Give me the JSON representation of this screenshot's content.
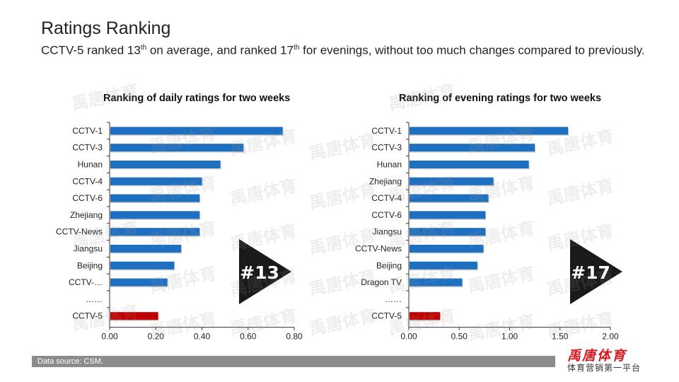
{
  "page": {
    "title": "Ratings Ranking",
    "subtitle_pre": "CCTV-5 ranked 13",
    "subtitle_sup1": "th",
    "subtitle_mid": " on average, and ranked 17",
    "subtitle_sup2": "th",
    "subtitle_post": " for evenings, without too much changes compared to previously."
  },
  "footer": {
    "source": "Data source: CSM."
  },
  "logo": {
    "name": "禹唐体育",
    "tagline": "体育营销第一平台"
  },
  "watermark": "禹唐体育",
  "colors": {
    "bar": "#1f6fc0",
    "highlight": "#c00000",
    "badge": "#1a1a1a",
    "footer": "#8c8c8c"
  },
  "chart_data": [
    {
      "type": "bar",
      "orientation": "horizontal",
      "title": "Ranking of daily ratings for two weeks",
      "categories": [
        "CCTV-1",
        "CCTV-3",
        "Hunan",
        "CCTV-4",
        "CCTV-6",
        "Zhejiang",
        "CCTV-News",
        "Jiangsu",
        "Beijing",
        "CCTV-…",
        "……",
        "CCTV-5"
      ],
      "values": [
        0.75,
        0.58,
        0.48,
        0.4,
        0.39,
        0.39,
        0.39,
        0.31,
        0.28,
        0.25,
        null,
        0.21
      ],
      "highlight": "CCTV-5",
      "xlim": [
        0,
        0.8
      ],
      "ticks": [
        "0.00",
        "0.20",
        "0.40",
        "0.60",
        "0.80"
      ],
      "badge": "#13"
    },
    {
      "type": "bar",
      "orientation": "horizontal",
      "title": "Ranking of evening ratings for two weeks",
      "categories": [
        "CCTV-1",
        "CCTV-3",
        "Hunan",
        "Zhejiang",
        "CCTV-4",
        "CCTV-6",
        "Jiangsu",
        "CCTV-News",
        "Beijing",
        "Dragon TV",
        "……",
        "CCTV-5"
      ],
      "values": [
        1.58,
        1.25,
        1.19,
        0.84,
        0.79,
        0.76,
        0.76,
        0.74,
        0.68,
        0.53,
        null,
        0.31
      ],
      "highlight": "CCTV-5",
      "xlim": [
        0,
        2.0
      ],
      "ticks": [
        "0.00",
        "0.50",
        "1.00",
        "1.50",
        "2.00"
      ],
      "badge": "#17"
    }
  ]
}
